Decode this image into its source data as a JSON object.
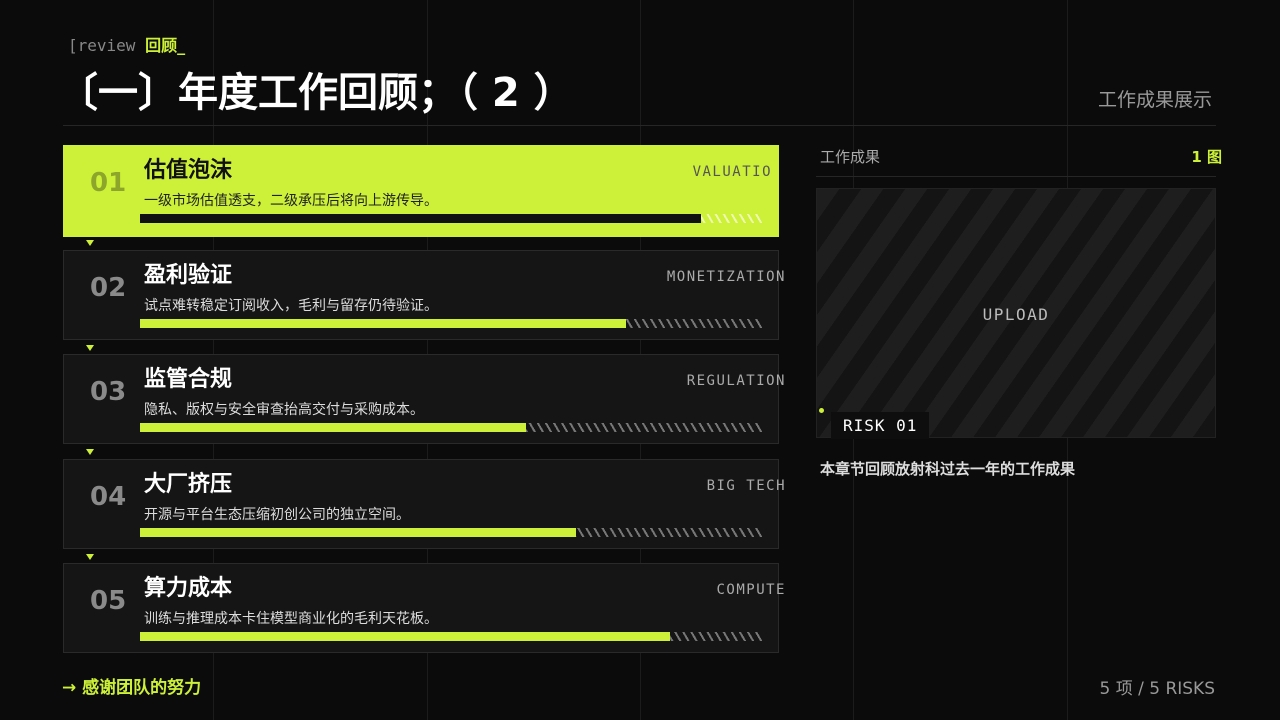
{
  "header": {
    "tag_prefix": "[review",
    "tag_label": "回顾_",
    "title": "〔一〕年度工作回顾；（ 2 ）",
    "section_label": "工作成果展示"
  },
  "items": [
    {
      "number": "01",
      "title": "估值泡沫",
      "description": "一级市场估值透支，二级承压后将向上游传导。",
      "tag": "VALUATIO",
      "progress": 90
    },
    {
      "number": "02",
      "title": "盈利验证",
      "description": "试点难转稳定订阅收入，毛利与留存仍待验证。",
      "tag": "MONETIZATION",
      "progress": 78
    },
    {
      "number": "03",
      "title": "监管合规",
      "description": "隐私、版权与安全审查抬高交付与采购成本。",
      "tag": "REGULATION",
      "progress": 62
    },
    {
      "number": "04",
      "title": "大厂挤压",
      "description": "开源与平台生态压缩初创公司的独立空间。",
      "tag": "BIG TECH",
      "progress": 70
    },
    {
      "number": "05",
      "title": "算力成本",
      "description": "训练与推理成本卡住模型商业化的毛利天花板。",
      "tag": "COMPUTE",
      "progress": 85
    }
  ],
  "panel": {
    "title": "工作成果",
    "count": "1 图",
    "placeholder": "UPLOAD",
    "badge": "RISK 01",
    "caption": "本章节回顾放射科过去一年的工作成果"
  },
  "footer": {
    "arrow": "→",
    "message": "感谢团队的努力",
    "summary": "5 项 / 5 RISKS"
  }
}
